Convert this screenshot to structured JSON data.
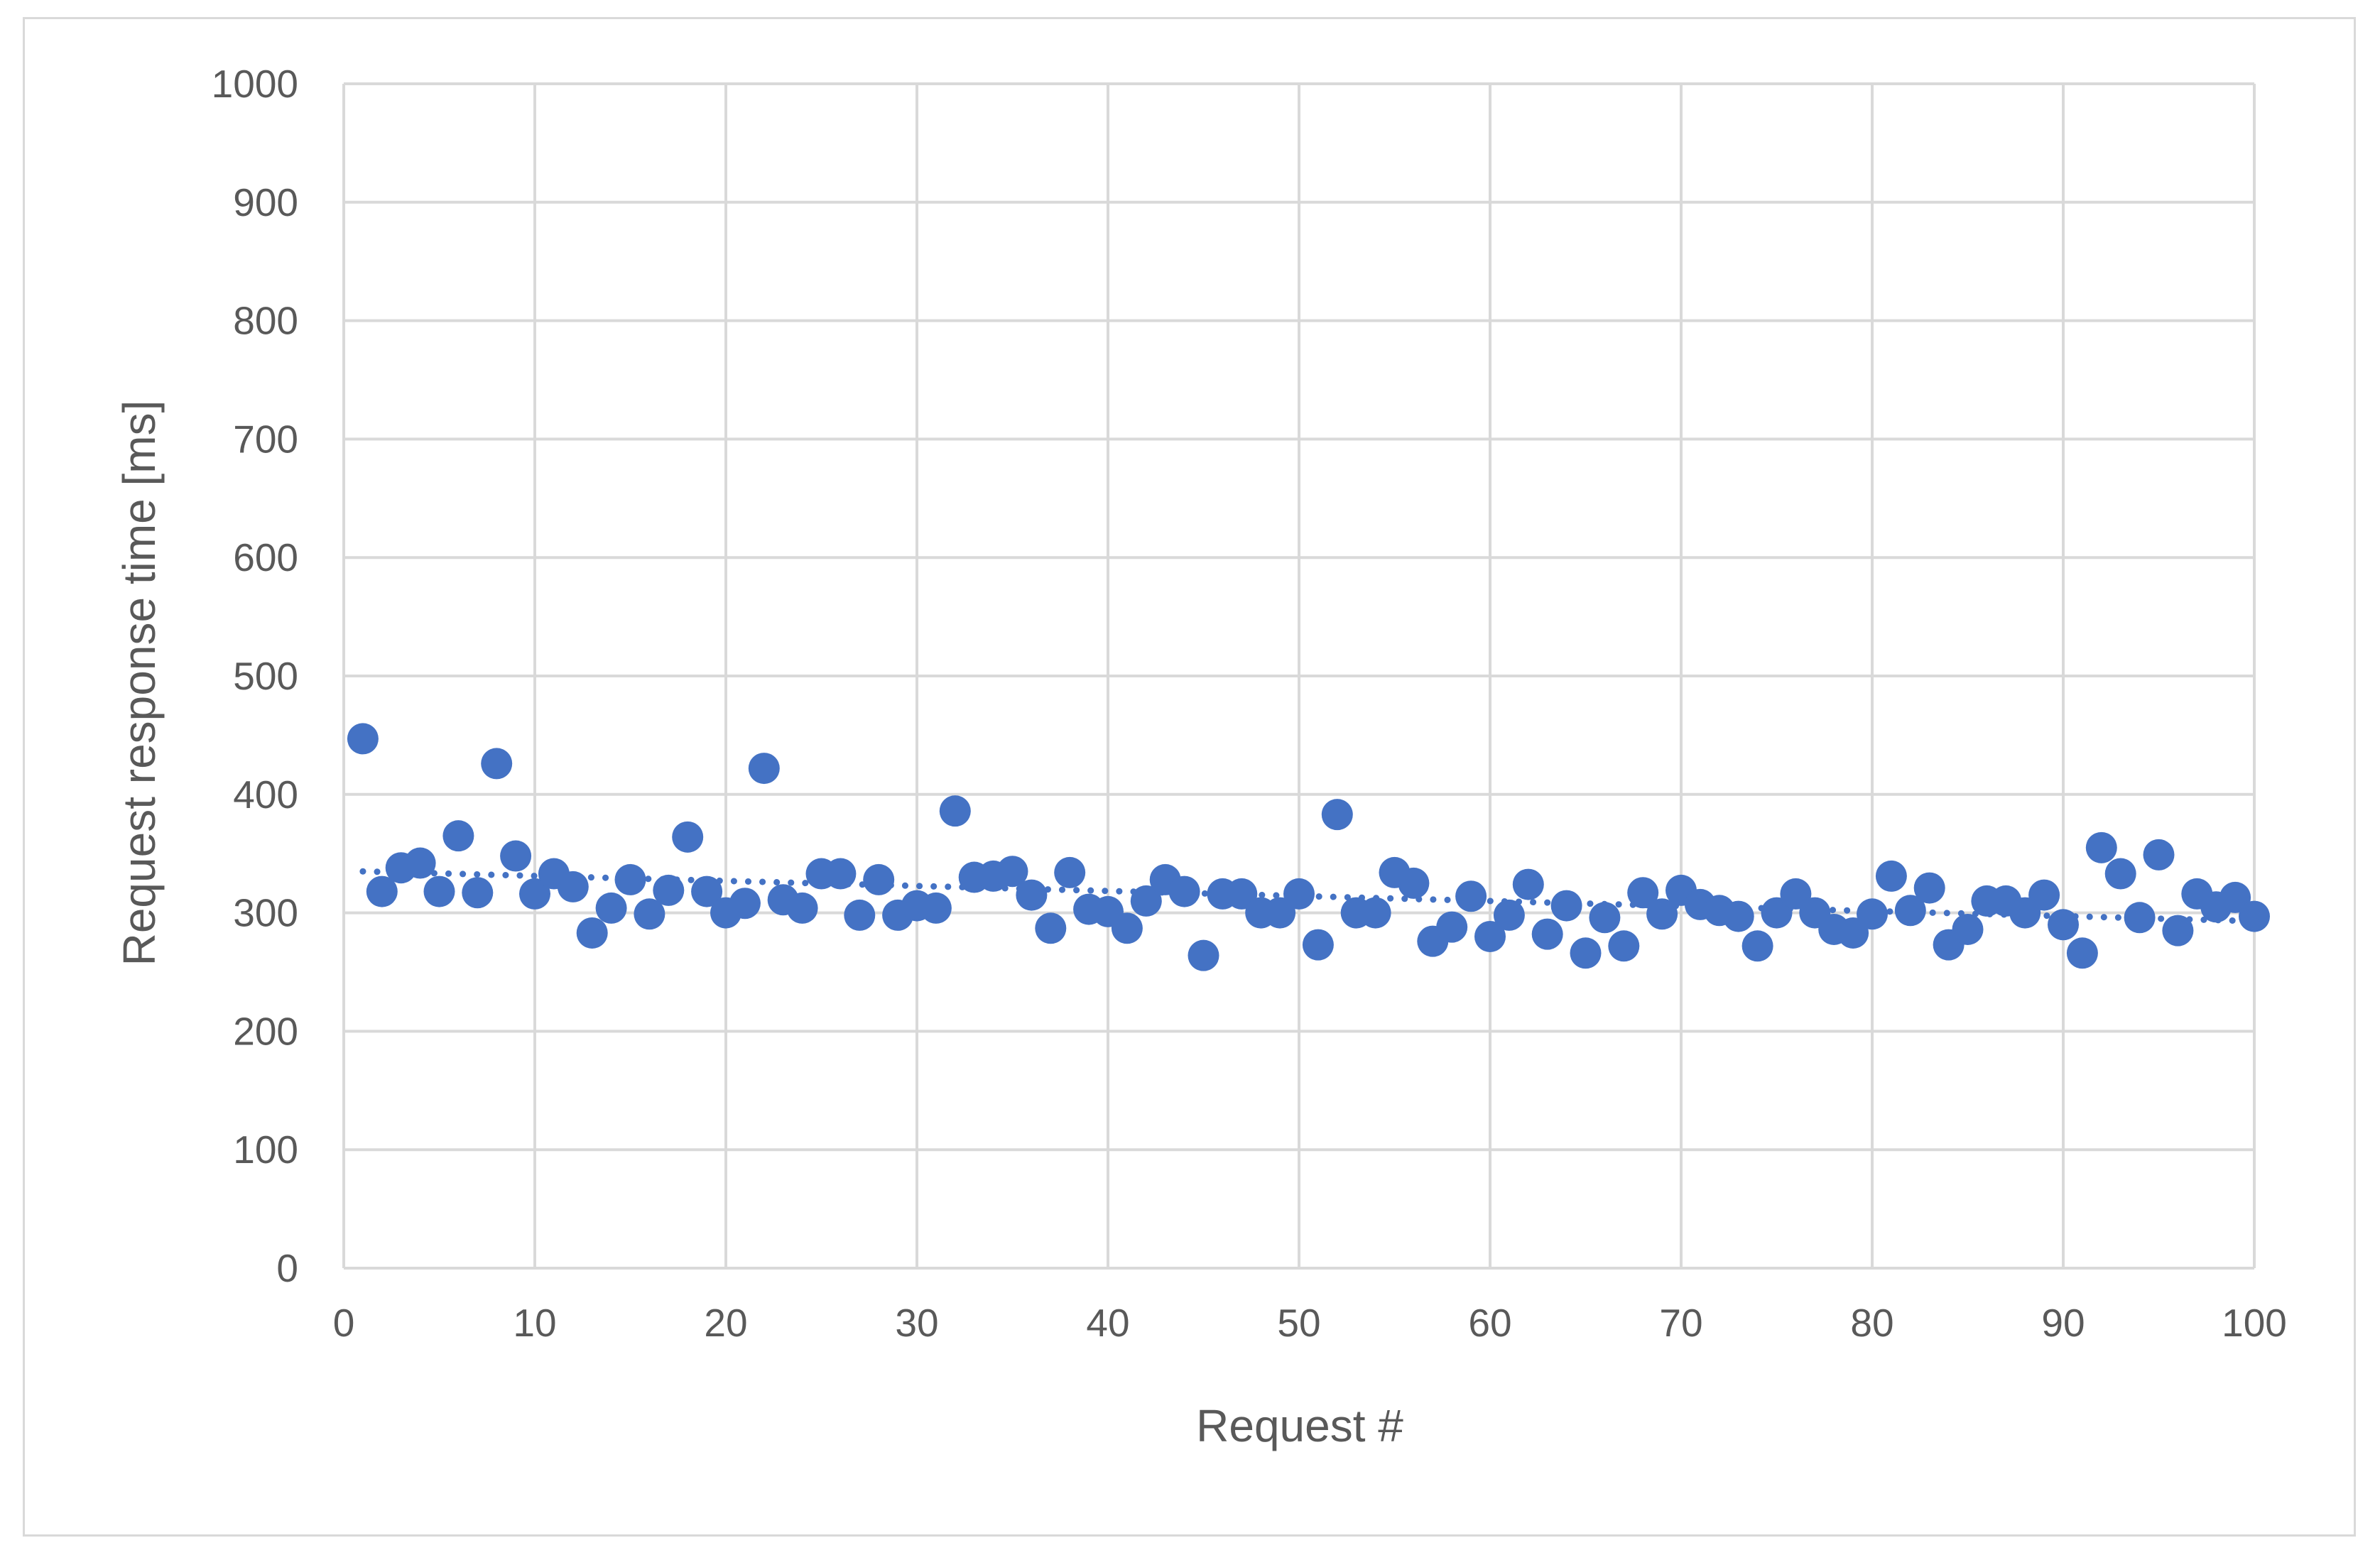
{
  "chart_data": {
    "type": "scatter",
    "title": "",
    "xlabel": "Request #",
    "ylabel": "Request response time [ms]",
    "xlim": [
      0,
      100
    ],
    "ylim": [
      0,
      1000
    ],
    "xticks": [
      "0",
      "10",
      "20",
      "30",
      "40",
      "50",
      "60",
      "70",
      "80",
      "90",
      "100"
    ],
    "yticks": [
      "0",
      "100",
      "200",
      "300",
      "400",
      "500",
      "600",
      "700",
      "800",
      "900",
      "1000"
    ],
    "grid": true,
    "legend": "none",
    "marker_color": "#4472c4",
    "grid_color": "#d9d9d9",
    "trendline": {
      "type": "linear",
      "style": "dotted",
      "start": [
        1,
        335
      ],
      "end": [
        100,
        293
      ]
    },
    "series": [
      {
        "x": [
          1,
          2,
          3,
          4,
          5,
          6,
          7,
          8,
          9,
          10,
          11,
          12,
          13,
          14,
          15,
          16,
          17,
          18,
          19,
          20,
          21,
          22,
          23,
          24,
          25,
          26,
          27,
          28,
          29,
          30,
          31,
          32,
          33,
          34,
          35,
          36,
          37,
          38,
          39,
          40,
          41,
          42,
          43,
          44,
          45,
          46,
          47,
          48,
          49,
          50,
          51,
          52,
          53,
          54,
          55,
          56,
          57,
          58,
          59,
          60,
          61,
          62,
          63,
          64,
          65,
          66,
          67,
          68,
          69,
          70,
          71,
          72,
          73,
          74,
          75,
          76,
          77,
          78,
          79,
          80,
          81,
          82,
          83,
          84,
          85,
          86,
          87,
          88,
          89,
          90,
          91,
          92,
          93,
          94,
          95,
          96,
          97,
          98,
          99,
          100
        ],
        "values": [
          447,
          318,
          338,
          342,
          318,
          365,
          317,
          426,
          348,
          316,
          333,
          322,
          283,
          304,
          328,
          299,
          319,
          364,
          318,
          300,
          308,
          422,
          311,
          304,
          333,
          333,
          298,
          328,
          298,
          306,
          304,
          386,
          330,
          331,
          335,
          315,
          287,
          334,
          303,
          301,
          287,
          310,
          328,
          318,
          264,
          316,
          316,
          300,
          300,
          316,
          273,
          383,
          300,
          300,
          334,
          325,
          276,
          288,
          314,
          280,
          298,
          324,
          282,
          306,
          266,
          296,
          272,
          317,
          299,
          319,
          307,
          302,
          297,
          272,
          300,
          316,
          300,
          286,
          283,
          299,
          331,
          302,
          321,
          273,
          286,
          310,
          310,
          300,
          315,
          290,
          266,
          355,
          333,
          296,
          349,
          285,
          316,
          305,
          313,
          297
        ]
      }
    ]
  }
}
